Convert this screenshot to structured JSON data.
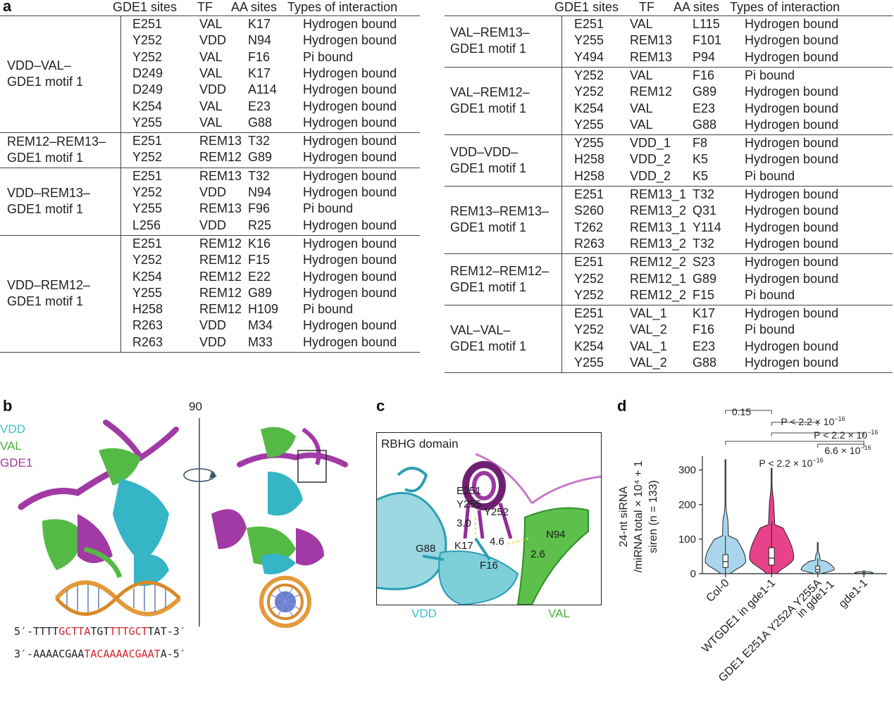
{
  "panels": {
    "a": "a",
    "b": "b",
    "c": "c",
    "d": "d"
  },
  "table_header": {
    "sites": "GDE1 sites",
    "tf": "TF",
    "aa": "AA sites",
    "types": "Types of interaction"
  },
  "left_groups": [
    {
      "label": [
        "VDD–VAL–",
        "GDE1 motif 1"
      ],
      "rows": [
        [
          "E251",
          "VAL",
          "K17",
          "Hydrogen bound"
        ],
        [
          "Y252",
          "VDD",
          "N94",
          "Hydrogen bound"
        ],
        [
          "Y252",
          "VAL",
          "F16",
          "Pi bound"
        ],
        [
          "D249",
          "VAL",
          "K17",
          "Hydrogen bound"
        ],
        [
          "D249",
          "VDD",
          "A114",
          "Hydrogen bound"
        ],
        [
          "K254",
          "VAL",
          "E23",
          "Hydrogen bound"
        ],
        [
          "Y255",
          "VAL",
          "G88",
          "Hydrogen bound"
        ]
      ]
    },
    {
      "label": [
        "REM12–REM13–",
        "GDE1 motif 1"
      ],
      "rows": [
        [
          "E251",
          "REM13",
          "T32",
          "Hydrogen bound"
        ],
        [
          "Y252",
          "REM12",
          "G89",
          "Hydrogen bound"
        ]
      ]
    },
    {
      "label": [
        "VDD–REM13–",
        "GDE1 motif 1"
      ],
      "rows": [
        [
          "E251",
          "REM13",
          "T32",
          "Hydrogen bound"
        ],
        [
          "Y252",
          "VDD",
          "N94",
          "Hydrogen bound"
        ],
        [
          "Y255",
          "REM13",
          "F96",
          "Pi bound"
        ],
        [
          "L256",
          "VDD",
          "R25",
          "Hydrogen bound"
        ]
      ]
    },
    {
      "label": [
        "VDD–REM12–",
        "GDE1 motif 1"
      ],
      "rows": [
        [
          "E251",
          "REM12",
          "K16",
          "Hydrogen bound"
        ],
        [
          "Y252",
          "REM12",
          "F15",
          "Hydrogen bound"
        ],
        [
          "K254",
          "REM12",
          "E22",
          "Hydrogen bound"
        ],
        [
          "Y255",
          "REM12",
          "G89",
          "Hydrogen bound"
        ],
        [
          "H258",
          "REM12",
          "H109",
          "Pi bound"
        ],
        [
          "R263",
          "VDD",
          "M34",
          "Hydrogen bound"
        ],
        [
          "R263",
          "VDD",
          "M33",
          "Hydrogen bound"
        ]
      ]
    }
  ],
  "right_groups": [
    {
      "label": [
        "VAL–REM13–",
        "GDE1 motif 1"
      ],
      "rows": [
        [
          "E251",
          "VAL",
          "L115",
          "Hydrogen bound"
        ],
        [
          "Y255",
          "REM13",
          "F101",
          "Hydrogen bound"
        ],
        [
          "Y494",
          "REM13",
          "P94",
          "Hydrogen bound"
        ]
      ]
    },
    {
      "label": [
        "VAL–REM12–",
        "GDE1 motif 1"
      ],
      "rows": [
        [
          "Y252",
          "VAL",
          "F16",
          "Pi bound"
        ],
        [
          "Y252",
          "REM12",
          "G89",
          "Hydrogen bound"
        ],
        [
          "K254",
          "VAL",
          "E23",
          "Hydrogen bound"
        ],
        [
          "Y255",
          "VAL",
          "G88",
          "Hydrogen bound"
        ]
      ]
    },
    {
      "label": [
        "VDD–VDD–",
        "GDE1 motif 1"
      ],
      "rows": [
        [
          "Y255",
          "VDD_1",
          "F8",
          "Hydrogen bound"
        ],
        [
          "H258",
          "VDD_2",
          "K5",
          "Hydrogen bound"
        ],
        [
          "H258",
          "VDD_2",
          "K5",
          "Pi bound"
        ]
      ]
    },
    {
      "label": [
        "REM13–REM13–",
        "GDE1 motif 1"
      ],
      "rows": [
        [
          "E251",
          "REM13_1",
          "T32",
          "Hydrogen bound"
        ],
        [
          "S260",
          "REM13_2",
          "Q31",
          "Hydrogen bound"
        ],
        [
          "T262",
          "REM13_1",
          "Y114",
          "Hydrogen bound"
        ],
        [
          "R263",
          "REM13_2",
          "T32",
          "Hydrogen bound"
        ]
      ]
    },
    {
      "label": [
        "REM12–REM12–",
        "GDE1 motif 1"
      ],
      "rows": [
        [
          "E251",
          "REM12_2",
          "S23",
          "Hydrogen bound"
        ],
        [
          "Y252",
          "REM12_1",
          "G89",
          "Hydrogen bound"
        ],
        [
          "Y252",
          "REM12_2",
          "F15",
          "Pi bound"
        ]
      ]
    },
    {
      "label": [
        "VAL–VAL–",
        "GDE1 motif 1"
      ],
      "rows": [
        [
          "E251",
          "VAL_1",
          "K17",
          "Hydrogen bound"
        ],
        [
          "Y252",
          "VAL_2",
          "F16",
          "Pi bound"
        ],
        [
          "K254",
          "VAL_1",
          "E23",
          "Hydrogen bound"
        ],
        [
          "Y255",
          "VAL_2",
          "G88",
          "Hydrogen bound"
        ]
      ]
    }
  ],
  "panel_b": {
    "legend": [
      "VDD",
      "VAL",
      "GDE1"
    ],
    "legend_colors": [
      "#3fbfd0",
      "#4caf3a",
      "#a23aa6"
    ],
    "rotation": "90",
    "dna_top": [
      [
        "5′-TTTT",
        ""
      ],
      [
        "GCTTA",
        "r"
      ],
      [
        "TGT",
        ""
      ],
      [
        "TTTGCT",
        "r"
      ],
      [
        "TAT-3′",
        ""
      ]
    ],
    "dna_bottom": [
      [
        "3′-AAAACGAA",
        ""
      ],
      [
        "TACAAAA",
        "r"
      ],
      [
        "CGAAT",
        "r"
      ],
      [
        "A-5′",
        ""
      ]
    ]
  },
  "panel_c": {
    "title": "RBHG domain",
    "residues": [
      "E251",
      "Y255",
      "Y252",
      "K17",
      "G88",
      "F16",
      "N94"
    ],
    "distances": [
      "3.0",
      "4.6",
      "2.6"
    ],
    "bottom_left": "VDD",
    "bottom_right": "VAL"
  },
  "chart_data": {
    "type": "violin",
    "categories": [
      "Col-0",
      "WTGDE1 in gde1-1",
      "GDE1 E251A Y252A Y255A in gde1-1",
      "gde1-1"
    ],
    "category_lines": [
      [
        "Col-0"
      ],
      [
        "WTGDE1 in gde1-1"
      ],
      [
        "GDE1 E251A Y252A Y255A",
        "in gde1-1"
      ],
      [
        "gde1-1"
      ]
    ],
    "colors": [
      "#a9d6ec",
      "#e8428b",
      "#a9d6ec",
      "#a9d6ec"
    ],
    "ylabel_lines": [
      "24-nt siRNA",
      "/miRNA total × 10⁴ + 1",
      "siren (n = 133)"
    ],
    "ylim": [
      0,
      330
    ],
    "yticks": [
      0,
      100,
      200,
      300
    ],
    "series": [
      {
        "name": "Col-0",
        "median": 35,
        "q1": 18,
        "q3": 55,
        "max": 330,
        "peak_width": 0.55
      },
      {
        "name": "WTGDE1 in gde1-1",
        "median": 45,
        "q1": 25,
        "q3": 75,
        "max": 305,
        "peak_width": 0.6
      },
      {
        "name": "GDE1 E251A Y252A Y255A in gde1-1",
        "median": 12,
        "q1": 5,
        "q3": 22,
        "max": 90,
        "peak_width": 0.45
      },
      {
        "name": "gde1-1",
        "median": 2,
        "q1": 1,
        "q3": 3,
        "max": 8,
        "peak_width": 0.25
      }
    ],
    "annotations": [
      {
        "from": 0,
        "to": 1,
        "text": "0.15"
      },
      {
        "from": 1,
        "to": 2,
        "text": "P < 2.2 × 10",
        "exp": "−16"
      },
      {
        "from": 1,
        "to": 3,
        "text": "P < 2.2 × 10",
        "exp": "−16"
      },
      {
        "from": 2,
        "to": 3,
        "text": "6.6 × 10",
        "exp": "−16"
      },
      {
        "from": 0,
        "to": 3,
        "text": "P < 2.2 × 10",
        "exp": "−16"
      }
    ]
  }
}
